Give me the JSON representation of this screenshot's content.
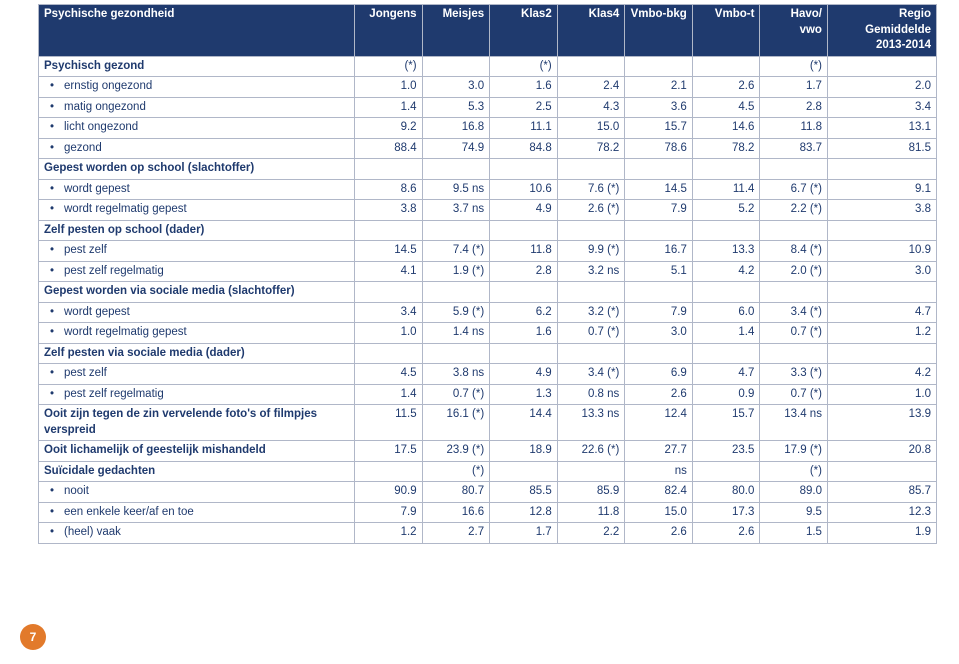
{
  "colors": {
    "header_bg": "#1f3a6e",
    "header_fg": "#ffffff",
    "text": "#1f3a6e",
    "border": "#b0b7c8",
    "page_bg": "#ffffff",
    "badge_bg": "#e27a2b",
    "badge_fg": "#ffffff"
  },
  "page_number": "7",
  "table": {
    "title": "Psychische gezondheid",
    "columns": [
      "Jongens",
      "Meisjes",
      "Klas2",
      "Klas4",
      "Vmbo-bkg",
      "Vmbo-t",
      "Havo/ vwo",
      "Regio Gemiddelde 2013-2014"
    ],
    "rows": [
      {
        "type": "section",
        "label": "Psychisch gezond",
        "cells": [
          "(*)",
          "",
          "(*)",
          "",
          "",
          "",
          "(*)",
          ""
        ]
      },
      {
        "type": "data",
        "label": "ernstig ongezond",
        "cells": [
          "1.0",
          "3.0",
          "1.6",
          "2.4",
          "2.1",
          "2.6",
          "1.7",
          "2.0"
        ]
      },
      {
        "type": "data",
        "label": "matig ongezond",
        "cells": [
          "1.4",
          "5.3",
          "2.5",
          "4.3",
          "3.6",
          "4.5",
          "2.8",
          "3.4"
        ]
      },
      {
        "type": "data",
        "label": "licht ongezond",
        "cells": [
          "9.2",
          "16.8",
          "11.1",
          "15.0",
          "15.7",
          "14.6",
          "11.8",
          "13.1"
        ]
      },
      {
        "type": "data",
        "label": "gezond",
        "cells": [
          "88.4",
          "74.9",
          "84.8",
          "78.2",
          "78.6",
          "78.2",
          "83.7",
          "81.5"
        ]
      },
      {
        "type": "section",
        "label": "Gepest worden op school (slachtoffer)",
        "cells": [
          "",
          "",
          "",
          "",
          "",
          "",
          "",
          ""
        ]
      },
      {
        "type": "data",
        "label": "wordt gepest",
        "cells": [
          "8.6",
          "9.5 ns",
          "10.6",
          "7.6 (*)",
          "14.5",
          "11.4",
          "6.7 (*)",
          "9.1"
        ]
      },
      {
        "type": "data",
        "label": "wordt regelmatig gepest",
        "cells": [
          "3.8",
          "3.7 ns",
          "4.9",
          "2.6 (*)",
          "7.9",
          "5.2",
          "2.2 (*)",
          "3.8"
        ]
      },
      {
        "type": "section",
        "label": "Zelf pesten op school (dader)",
        "cells": [
          "",
          "",
          "",
          "",
          "",
          "",
          "",
          ""
        ]
      },
      {
        "type": "data",
        "label": "pest zelf",
        "cells": [
          "14.5",
          "7.4 (*)",
          "11.8",
          "9.9 (*)",
          "16.7",
          "13.3",
          "8.4 (*)",
          "10.9"
        ]
      },
      {
        "type": "data",
        "label": "pest zelf regelmatig",
        "cells": [
          "4.1",
          "1.9 (*)",
          "2.8",
          "3.2 ns",
          "5.1",
          "4.2",
          "2.0 (*)",
          "3.0"
        ]
      },
      {
        "type": "section",
        "label": "Gepest worden via sociale media (slachtoffer)",
        "cells": [
          "",
          "",
          "",
          "",
          "",
          "",
          "",
          ""
        ]
      },
      {
        "type": "data",
        "label": "wordt gepest",
        "cells": [
          "3.4",
          "5.9 (*)",
          "6.2",
          "3.2 (*)",
          "7.9",
          "6.0",
          "3.4 (*)",
          "4.7"
        ]
      },
      {
        "type": "data",
        "label": "wordt regelmatig gepest",
        "cells": [
          "1.0",
          "1.4 ns",
          "1.6",
          "0.7 (*)",
          "3.0",
          "1.4",
          "0.7 (*)",
          "1.2"
        ]
      },
      {
        "type": "section",
        "label": "Zelf pesten via sociale media (dader)",
        "cells": [
          "",
          "",
          "",
          "",
          "",
          "",
          "",
          ""
        ]
      },
      {
        "type": "data",
        "label": "pest zelf",
        "cells": [
          "4.5",
          "3.8 ns",
          "4.9",
          "3.4 (*)",
          "6.9",
          "4.7",
          "3.3 (*)",
          "4.2"
        ]
      },
      {
        "type": "data",
        "label": "pest zelf regelmatig",
        "cells": [
          "1.4",
          "0.7 (*)",
          "1.3",
          "0.8 ns",
          "2.6",
          "0.9",
          "0.7 (*)",
          "1.0"
        ]
      },
      {
        "type": "section",
        "label": "Ooit zijn tegen de zin vervelende foto's of filmpjes verspreid",
        "cells": [
          "11.5",
          "16.1 (*)",
          "14.4",
          "13.3 ns",
          "12.4",
          "15.7",
          "13.4 ns",
          "13.9"
        ]
      },
      {
        "type": "section",
        "label": "Ooit lichamelijk of geestelijk mishandeld",
        "cells": [
          "17.5",
          "23.9 (*)",
          "18.9",
          "22.6 (*)",
          "27.7",
          "23.5",
          "17.9 (*)",
          "20.8"
        ]
      },
      {
        "type": "section",
        "label": "Suïcidale gedachten",
        "cells": [
          "",
          "(*)",
          "",
          "",
          "ns",
          "",
          "(*)",
          ""
        ]
      },
      {
        "type": "data",
        "label": "nooit",
        "cells": [
          "90.9",
          "80.7",
          "85.5",
          "85.9",
          "82.4",
          "80.0",
          "89.0",
          "85.7"
        ]
      },
      {
        "type": "data",
        "label": "een enkele keer/af en toe",
        "cells": [
          "7.9",
          "16.6",
          "12.8",
          "11.8",
          "15.0",
          "17.3",
          "9.5",
          "12.3"
        ]
      },
      {
        "type": "data",
        "label": "(heel) vaak",
        "cells": [
          "1.2",
          "2.7",
          "1.7",
          "2.2",
          "2.6",
          "2.6",
          "1.5",
          "1.9"
        ]
      }
    ]
  }
}
